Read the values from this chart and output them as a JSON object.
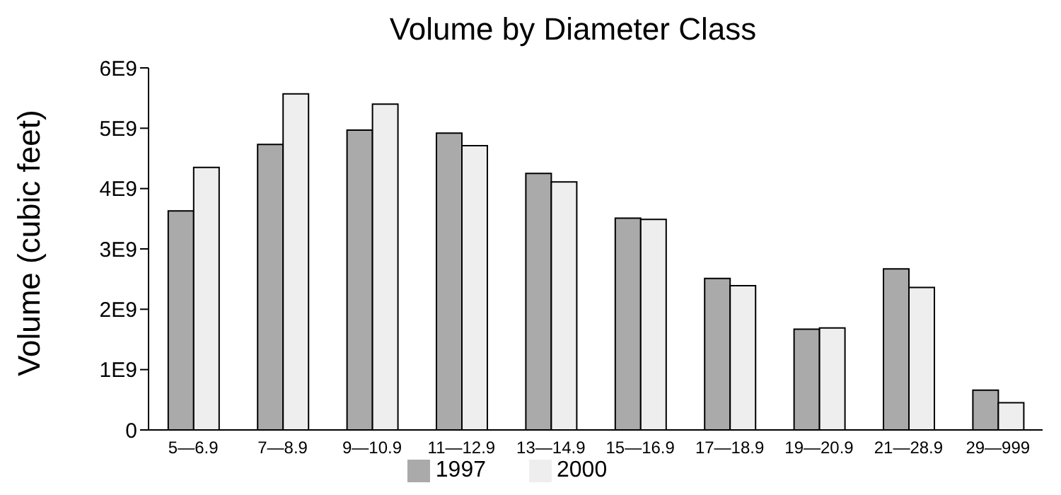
{
  "chart_data": {
    "type": "bar",
    "title": "Volume by Diameter Class",
    "ylabel": "Volume (cubic feet)",
    "categories": [
      "5—6.9",
      "7—8.9",
      "9—10.9",
      "11—12.9",
      "13—14.9",
      "15—16.9",
      "17—18.9",
      "19—20.9",
      "21—28.9",
      "29—999"
    ],
    "series": [
      {
        "name": "1997",
        "color": "#aaaaaa",
        "values": [
          3630000000,
          4730000000,
          4970000000,
          4920000000,
          4250000000,
          3510000000,
          2510000000,
          1670000000,
          2670000000,
          660000000
        ]
      },
      {
        "name": "2000",
        "color": "#eeeeee",
        "values": [
          4350000000,
          5570000000,
          5400000000,
          4710000000,
          4110000000,
          3490000000,
          2390000000,
          1690000000,
          2360000000,
          450000000
        ]
      }
    ],
    "ylim": [
      0,
      6000000000
    ],
    "yticks": [
      {
        "value": 0,
        "label": "0"
      },
      {
        "value": 1000000000,
        "label": "1E9"
      },
      {
        "value": 2000000000,
        "label": "2E9"
      },
      {
        "value": 3000000000,
        "label": "3E9"
      },
      {
        "value": 4000000000,
        "label": "4E9"
      },
      {
        "value": 5000000000,
        "label": "5E9"
      },
      {
        "value": 6000000000,
        "label": "6E9"
      }
    ],
    "grid": false,
    "legend": "bottom"
  }
}
